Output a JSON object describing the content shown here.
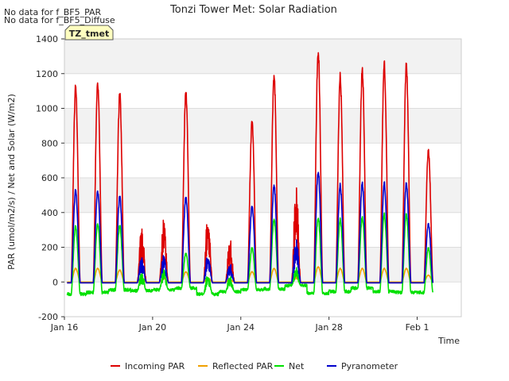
{
  "notes": [
    "No data for f_BF5_PAR",
    "No data for f_BF5_Diffuse"
  ],
  "badge": "TZ_tmet",
  "chart_data": {
    "type": "line",
    "title": "Tonzi Tower Met: Solar Radiation",
    "xlabel": "Time",
    "ylabel": "PAR (umol/m2/s) / Net and Solar (W/m2)",
    "ylim": [
      -200,
      1400
    ],
    "yticks": [
      -200,
      0,
      200,
      400,
      600,
      800,
      1000,
      1200,
      1400
    ],
    "xlim": [
      "2022-01-16",
      "2022-02-03"
    ],
    "xticks": [
      {
        "date": "2022-01-16",
        "label": "Jan 16"
      },
      {
        "date": "2022-01-20",
        "label": "Jan 20"
      },
      {
        "date": "2022-01-24",
        "label": "Jan 24"
      },
      {
        "date": "2022-01-28",
        "label": "Jan 28"
      },
      {
        "date": "2022-02-01",
        "label": "Feb 1"
      }
    ],
    "grid": true,
    "legend_position": "bottom",
    "series": [
      {
        "name": "Incoming PAR",
        "color": "#dd0000",
        "key": "par"
      },
      {
        "name": "Reflected PAR",
        "color": "#f0a000",
        "key": "ref"
      },
      {
        "name": "Net",
        "color": "#00e000",
        "key": "net"
      },
      {
        "name": "Pyranometer",
        "color": "#0000cc",
        "key": "pyr"
      }
    ],
    "daily_peaks": [
      {
        "date": "2022-01-16",
        "par": 1150,
        "ref": 80,
        "net": 330,
        "pyr": 540,
        "net_night": -70
      },
      {
        "date": "2022-01-17",
        "par": 1160,
        "ref": 80,
        "net": 340,
        "pyr": 530,
        "net_night": -60
      },
      {
        "date": "2022-01-18",
        "par": 1100,
        "ref": 70,
        "net": 330,
        "pyr": 500,
        "net_night": -45
      },
      {
        "date": "2022-01-19",
        "par": 330,
        "ref": 30,
        "net": 60,
        "pyr": 150,
        "net_night": -50
      },
      {
        "date": "2022-01-20",
        "par": 375,
        "ref": 30,
        "net": 80,
        "pyr": 160,
        "net_night": -45
      },
      {
        "date": "2022-01-21",
        "par": 1120,
        "ref": 60,
        "net": 170,
        "pyr": 500,
        "net_night": -35
      },
      {
        "date": "2022-01-22",
        "par": 430,
        "ref": 30,
        "net": 60,
        "pyr": 180,
        "net_night": -70
      },
      {
        "date": "2022-01-23",
        "par": 260,
        "ref": 20,
        "net": 40,
        "pyr": 110,
        "net_night": -55
      },
      {
        "date": "2022-01-24",
        "par": 935,
        "ref": 60,
        "net": 200,
        "pyr": 440,
        "net_night": -45
      },
      {
        "date": "2022-01-25",
        "par": 1215,
        "ref": 80,
        "net": 370,
        "pyr": 570,
        "net_night": -40
      },
      {
        "date": "2022-01-26",
        "par": 580,
        "ref": 40,
        "net": 90,
        "pyr": 260,
        "net_night": -20
      },
      {
        "date": "2022-01-27",
        "par": 1360,
        "ref": 90,
        "net": 380,
        "pyr": 650,
        "net_night": -65
      },
      {
        "date": "2022-01-28",
        "par": 1210,
        "ref": 80,
        "net": 370,
        "pyr": 570,
        "net_night": -55
      },
      {
        "date": "2022-01-29",
        "par": 1245,
        "ref": 80,
        "net": 380,
        "pyr": 580,
        "net_night": -35
      },
      {
        "date": "2022-01-30",
        "par": 1280,
        "ref": 80,
        "net": 400,
        "pyr": 580,
        "net_night": -55
      },
      {
        "date": "2022-01-31",
        "par": 1280,
        "ref": 80,
        "net": 400,
        "pyr": 580,
        "net_night": -60
      },
      {
        "date": "2022-02-01",
        "par": 770,
        "ref": 40,
        "net": 200,
        "pyr": 340,
        "net_night": -60
      }
    ]
  }
}
